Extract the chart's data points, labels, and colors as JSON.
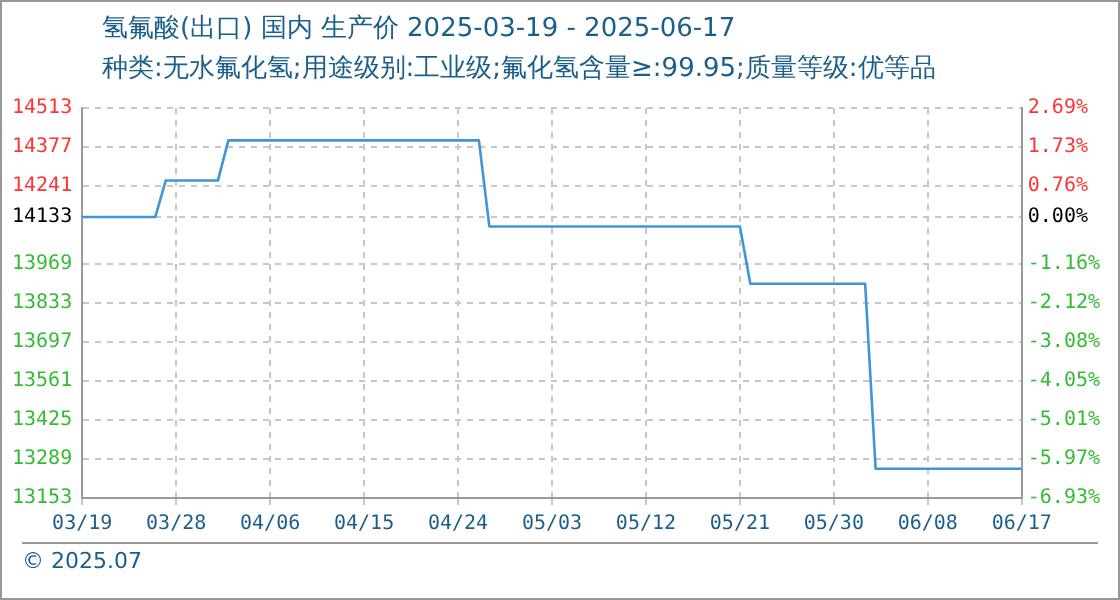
{
  "chart_data": {
    "type": "line",
    "title": "氢氟酸(出口) 国内 生产价 2025-03-19 - 2025-06-17",
    "subtitle": "种类:无水氟化氢;用途级别:工业级;氟化氢含量≥:99.95;质量等级:优等品",
    "x": [
      "2025-03-19",
      "2025-03-26",
      "2025-03-27",
      "2025-04-01",
      "2025-04-02",
      "2025-04-26",
      "2025-04-27",
      "2025-05-21",
      "2025-05-22",
      "2025-06-02",
      "2025-06-03",
      "2025-06-17"
    ],
    "series": [
      {
        "color": "#3f95d6",
        "values": [
          14133,
          14133,
          14260,
          14260,
          14400,
          14400,
          14100,
          14100,
          13900,
          13900,
          13255,
          13255
        ]
      }
    ],
    "xlim": [
      "2025-03-19",
      "2025-06-17"
    ],
    "xticks": [
      {
        "value": "2025-03-19",
        "label": "03/19"
      },
      {
        "value": "2025-03-28",
        "label": "03/28"
      },
      {
        "value": "2025-04-06",
        "label": "04/06"
      },
      {
        "value": "2025-04-15",
        "label": "04/15"
      },
      {
        "value": "2025-04-24",
        "label": "04/24"
      },
      {
        "value": "2025-05-03",
        "label": "05/03"
      },
      {
        "value": "2025-05-12",
        "label": "05/12"
      },
      {
        "value": "2025-05-21",
        "label": "05/21"
      },
      {
        "value": "2025-05-30",
        "label": "05/30"
      },
      {
        "value": "2025-06-08",
        "label": "06/08"
      },
      {
        "value": "2025-06-17",
        "label": "06/17"
      }
    ],
    "ylim": [
      13153,
      14513
    ],
    "yticks": [
      13153,
      13289,
      13425,
      13561,
      13697,
      13833,
      13969,
      14133,
      14241,
      14377,
      14513
    ],
    "y2lim": [
      -6.93,
      2.69
    ],
    "y2ticks": [
      {
        "value": -6.93,
        "label": "-6.93%"
      },
      {
        "value": -5.97,
        "label": "-5.97%"
      },
      {
        "value": -5.01,
        "label": "-5.01%"
      },
      {
        "value": -4.05,
        "label": "-4.05%"
      },
      {
        "value": -3.08,
        "label": "-3.08%"
      },
      {
        "value": -2.12,
        "label": "-2.12%"
      },
      {
        "value": -1.16,
        "label": "-1.16%"
      },
      {
        "value": 0,
        "label": "0.00%"
      },
      {
        "value": 0.76,
        "label": "0.76%"
      },
      {
        "value": 1.73,
        "label": "1.73%"
      },
      {
        "value": 2.69,
        "label": "2.69%"
      }
    ],
    "grid": true,
    "legend": false,
    "marker": "none",
    "line_style": "solid",
    "annotations": [
      "© 2025.07"
    ]
  }
}
